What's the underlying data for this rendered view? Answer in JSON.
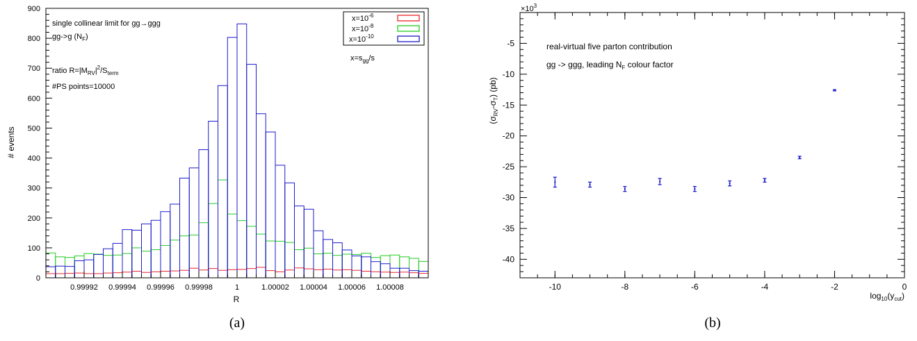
{
  "chart_data": [
    {
      "type": "bar",
      "subtype": "histogram",
      "panel_label": "(a)",
      "xlabel": "R",
      "ylabel": "# events",
      "xlim": [
        0.9999,
        1.0001
      ],
      "ylim": [
        0,
        900
      ],
      "yticks": [
        0,
        100,
        200,
        300,
        400,
        500,
        600,
        700,
        800,
        900
      ],
      "xticks": [
        {
          "value": 0.99992,
          "label": "0.99992"
        },
        {
          "value": 0.99994,
          "label": "0.99994"
        },
        {
          "value": 0.99996,
          "label": "0.99996"
        },
        {
          "value": 0.99998,
          "label": "0.99998"
        },
        {
          "value": 1.0,
          "label": "1"
        },
        {
          "value": 1.00002,
          "label": "1.00002"
        },
        {
          "value": 1.00004,
          "label": "1.00004"
        },
        {
          "value": 1.00006,
          "label": "1.00006"
        },
        {
          "value": 1.00008,
          "label": "1.00008"
        }
      ],
      "bin_width": 5e-06,
      "bin_edges_start": 0.9999,
      "annotations": [
        {
          "text": "single collinear limit for gg→ggg"
        },
        {
          "text": "gg->g (N",
          "sub": "F",
          "tail": ")"
        },
        {
          "text": "ratio R=|M",
          "sub": "RV",
          "tail": "|",
          "sup": "2",
          "tail2": "/S",
          "sub2": "term"
        },
        {
          "text": "#PS points=10000"
        },
        {
          "text": "x=s",
          "sub": "gg",
          "tail": "/s"
        }
      ],
      "legend": {
        "position": "top-right",
        "entries": [
          {
            "base": "x=10",
            "exp": "-6",
            "color": "#e8262a"
          },
          {
            "base": "x=10",
            "exp": "-8",
            "color": "#22cc22"
          },
          {
            "base": "x=10",
            "exp": "-10",
            "color": "#1a1acc"
          }
        ]
      },
      "series": [
        {
          "name": "x=10^-6",
          "color": "#e8262a",
          "values": [
            14,
            14,
            15,
            16,
            14,
            14,
            16,
            17,
            19,
            22,
            18,
            20,
            22,
            23,
            25,
            32,
            26,
            31,
            25,
            27,
            28,
            31,
            35,
            24,
            20,
            26,
            33,
            30,
            27,
            29,
            26,
            27,
            25,
            22,
            20,
            19,
            18,
            19,
            17,
            15
          ]
        },
        {
          "name": "x=10^-8",
          "color": "#22cc22",
          "values": [
            83,
            70,
            68,
            73,
            81,
            79,
            75,
            76,
            81,
            100,
            89,
            94,
            108,
            126,
            140,
            143,
            184,
            248,
            327,
            213,
            191,
            172,
            146,
            123,
            122,
            118,
            94,
            99,
            80,
            82,
            75,
            79,
            78,
            82,
            68,
            74,
            76,
            70,
            65,
            55
          ]
        },
        {
          "name": "x=10^-10",
          "color": "#1a1acc",
          "values": [
            37,
            39,
            38,
            57,
            60,
            78,
            97,
            115,
            161,
            159,
            180,
            192,
            221,
            246,
            333,
            367,
            428,
            523,
            642,
            803,
            848,
            713,
            548,
            487,
            376,
            317,
            240,
            229,
            157,
            128,
            117,
            93,
            73,
            70,
            54,
            47,
            32,
            32,
            24,
            22
          ]
        }
      ]
    },
    {
      "type": "scatter",
      "subtype": "errorbar",
      "panel_label": "(b)",
      "xlabel": {
        "text": "log",
        "sub": "10",
        "tail": "(y",
        "sub2": "cut",
        "tail2": ")"
      },
      "ylabel": {
        "text": "(σ",
        "sub": "RV",
        "mid": "-σ",
        "sub2": "T",
        "tail": ") (pb)"
      },
      "y_multiplier": {
        "base": "×10",
        "exp": "3"
      },
      "xlim": [
        -11,
        0
      ],
      "ylim": [
        -43,
        0
      ],
      "xticks": [
        -10,
        -8,
        -6,
        -4,
        -2,
        0
      ],
      "yticks": [
        -5,
        -10,
        -15,
        -20,
        -25,
        -30,
        -35,
        -40
      ],
      "annotations": [
        {
          "text": "real-virtual five parton contribution"
        },
        {
          "text": "gg -> ggg, leading N",
          "sub": "F",
          "tail": " colour factor"
        }
      ],
      "series": [
        {
          "color": "#1a1acc",
          "x": [
            -10,
            -9,
            -8,
            -7,
            -6,
            -5,
            -4,
            -3,
            -2
          ],
          "y": [
            -27.5,
            -27.9,
            -28.6,
            -27.4,
            -28.6,
            -27.7,
            -27.2,
            -23.5,
            -12.6
          ],
          "yerr": [
            0.8,
            0.4,
            0.4,
            0.5,
            0.4,
            0.4,
            0.3,
            0.2,
            0.1
          ]
        }
      ]
    }
  ]
}
